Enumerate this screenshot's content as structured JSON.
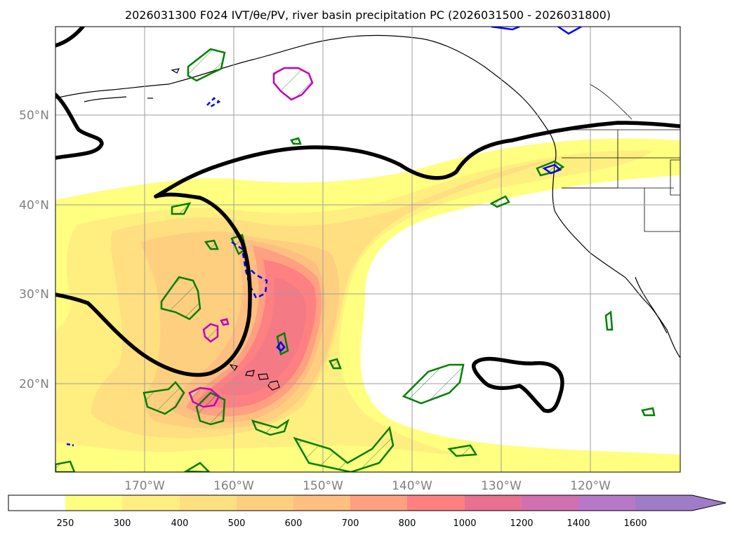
{
  "title": "2026031300 F024 IVT/θe/PV, river basin precipitation PC (2026031500 - 2026031800)",
  "map": {
    "lat_labels": [
      "50°N",
      "40°N",
      "30°N",
      "20°N"
    ],
    "lon_labels": [
      "170°W",
      "160°W",
      "150°W",
      "140°W",
      "130°W",
      "120°W"
    ],
    "fill_colors": [
      "#ffffff",
      "#ffff80",
      "#ffef80",
      "#ffdf80",
      "#ffcf80",
      "#ffbf80",
      "#ffa080",
      "#ff8080",
      "#e87090",
      "#d070b0",
      "#b878c8",
      "#a07cc8"
    ]
  },
  "colorbar": {
    "labels": [
      "250",
      "300",
      "400",
      "500",
      "600",
      "700",
      "800",
      "1000",
      "1200",
      "1400",
      "1600"
    ]
  }
}
